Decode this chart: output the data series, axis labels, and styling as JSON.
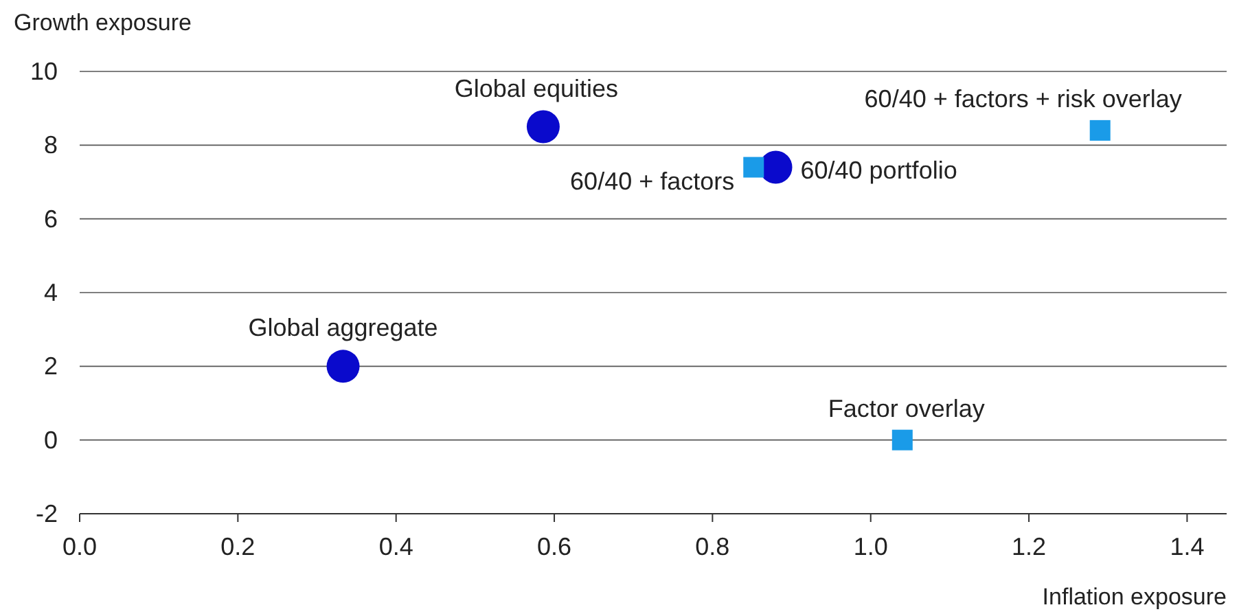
{
  "chart_data": {
    "type": "scatter",
    "xlabel": "Inflation exposure",
    "ylabel": "Growth exposure",
    "xlim": [
      0,
      1.45
    ],
    "xticks": [
      {
        "value": 0,
        "label": "0.0"
      },
      {
        "value": 0.2,
        "label": "0.2"
      },
      {
        "value": 0.4,
        "label": "0.4"
      },
      {
        "value": 0.6,
        "label": "0.6"
      },
      {
        "value": 0.8,
        "label": "0.8"
      },
      {
        "value": 1,
        "label": "1.0"
      },
      {
        "value": 1.2,
        "label": "1.2"
      },
      {
        "value": 1.4,
        "label": "1.4"
      }
    ],
    "ylim": [
      -2,
      10
    ],
    "yticks": [
      -2,
      0,
      2,
      4,
      6,
      8,
      10
    ],
    "grid": "y",
    "series": [
      {
        "color": "#0a0acc",
        "marker": "circle",
        "x": [
          0.586,
          0.88,
          0.333
        ],
        "values": [
          8.5,
          7.4,
          2.0
        ]
      },
      {
        "color": "#1a9be8",
        "marker": "square",
        "x": [
          0.852,
          1.04,
          1.29
        ],
        "values": [
          7.4,
          0,
          8.4
        ]
      }
    ],
    "annotations": [
      {
        "text": "Global equities",
        "x": 0.586,
        "y": 8.5
      },
      {
        "text": "60/40 portfolio",
        "x": 0.88,
        "y": 7.4
      },
      {
        "text": "60/40 + factors",
        "x": 0.852,
        "y": 7.4
      },
      {
        "text": "Global aggregate",
        "x": 0.333,
        "y": 2.0
      },
      {
        "text": "Factor overlay",
        "x": 1.04,
        "y": 0
      },
      {
        "text": "60/40 + factors + risk overlay",
        "x": 1.29,
        "y": 8.4
      }
    ]
  }
}
